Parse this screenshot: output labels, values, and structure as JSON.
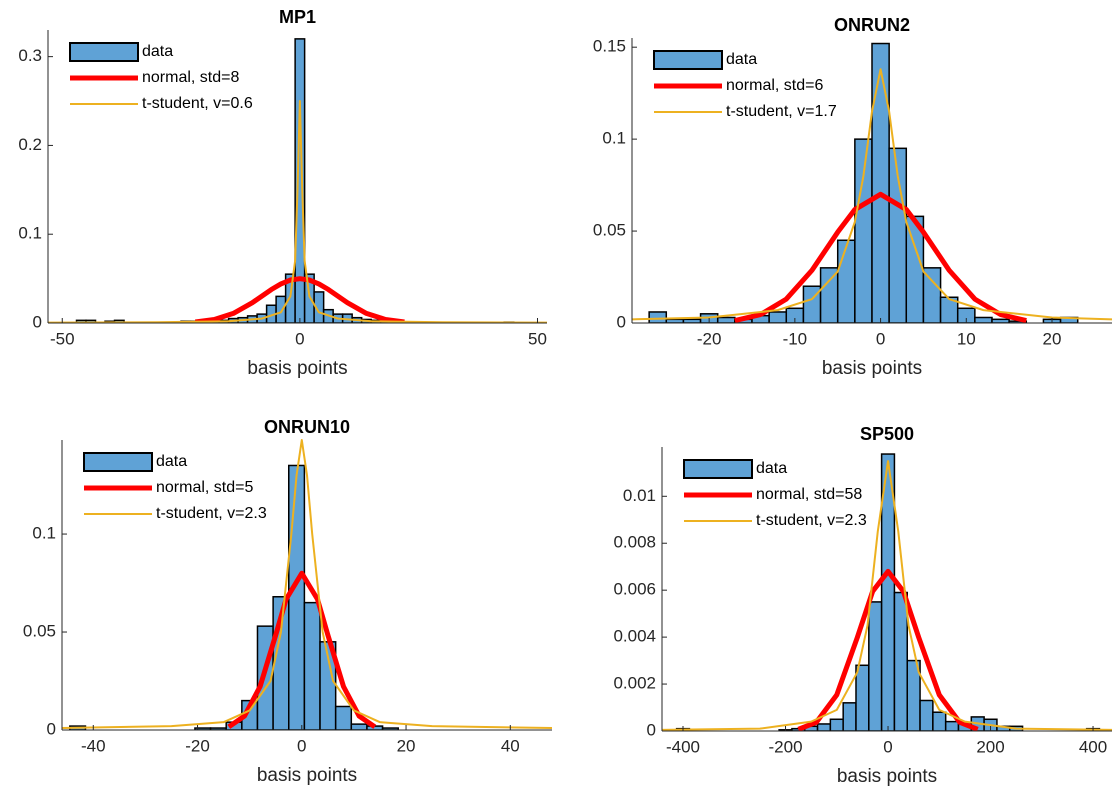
{
  "chart_data": [
    {
      "type": "histogram",
      "title": "MP1",
      "xlabel": "basis points",
      "xlim": [
        -53,
        52
      ],
      "ylim": [
        0,
        0.33
      ],
      "xticks": [
        -50,
        0,
        50
      ],
      "yticks": [
        0,
        0.1,
        0.2,
        0.3
      ],
      "legend": "upper left",
      "series": [
        {
          "name": "data",
          "type": "histogram",
          "color": "#5fa2d6",
          "bins": [
            -47,
            -45,
            -43,
            -41,
            -39,
            -37,
            -35,
            -33,
            -31,
            -29,
            -27,
            -25,
            -23,
            -21,
            -19,
            -17,
            -15,
            -13,
            -11,
            -9,
            -7,
            -5,
            -3,
            -1,
            1,
            3,
            5,
            7,
            9,
            11,
            13,
            15,
            17,
            19,
            21,
            23,
            25,
            27,
            29,
            31,
            33,
            35,
            37,
            39,
            41,
            43,
            45,
            47
          ],
          "values": [
            0.003,
            0.003,
            0,
            0.002,
            0.003,
            0,
            0,
            0,
            0,
            0,
            0,
            0.002,
            0.002,
            0.002,
            0.003,
            0.003,
            0.005,
            0.006,
            0.008,
            0.01,
            0.02,
            0.03,
            0.055,
            0.32,
            0.055,
            0.035,
            0.015,
            0.01,
            0.01,
            0.006,
            0.004,
            0.003,
            0.002,
            0,
            0,
            0,
            0,
            0,
            0,
            0,
            0,
            0,
            0,
            0,
            0,
            0.001,
            0
          ]
        },
        {
          "name": "normal, std=8",
          "type": "line",
          "color": "#ff0000",
          "width": 5,
          "x": [
            -22,
            -18,
            -14,
            -10,
            -6,
            -4,
            -2,
            0,
            2,
            4,
            6,
            10,
            14,
            18,
            22
          ],
          "values": [
            0.0011,
            0.004,
            0.0108,
            0.0229,
            0.0377,
            0.044,
            0.0484,
            0.0499,
            0.0484,
            0.044,
            0.0377,
            0.0229,
            0.0108,
            0.004,
            0.0011
          ]
        },
        {
          "name": "t-student, v=0.6",
          "type": "line",
          "color": "#edb120",
          "width": 2,
          "x": [
            -53,
            -30,
            -15,
            -8,
            -4,
            -2,
            -1,
            -0.5,
            0,
            0.5,
            1,
            2,
            4,
            8,
            15,
            30,
            52
          ],
          "values": [
            0.0004,
            0.0008,
            0.002,
            0.005,
            0.012,
            0.03,
            0.07,
            0.15,
            0.25,
            0.15,
            0.07,
            0.03,
            0.012,
            0.005,
            0.002,
            0.0008,
            0.0004
          ]
        }
      ]
    },
    {
      "type": "histogram",
      "title": "ONRUN2",
      "xlabel": "basis points",
      "xlim": [
        -29,
        27
      ],
      "ylim": [
        0,
        0.155
      ],
      "xticks": [
        -20,
        -10,
        0,
        10,
        20
      ],
      "yticks": [
        0,
        0.05,
        0.1,
        0.15
      ],
      "legend": "upper left",
      "series": [
        {
          "name": "data",
          "type": "histogram",
          "color": "#5fa2d6",
          "bins": [
            -27,
            -25,
            -23,
            -21,
            -19,
            -17,
            -15,
            -13,
            -11,
            -9,
            -7,
            -5,
            -3,
            -1,
            1,
            3,
            5,
            7,
            9,
            11,
            13,
            15,
            17,
            19,
            21,
            23,
            25
          ],
          "values": [
            0.006,
            0.002,
            0.002,
            0.005,
            0.003,
            0.002,
            0.004,
            0.006,
            0.008,
            0.02,
            0.03,
            0.045,
            0.1,
            0.152,
            0.095,
            0.058,
            0.03,
            0.014,
            0.008,
            0.003,
            0.002,
            0.001,
            0,
            0.002,
            0.003,
            0
          ]
        },
        {
          "name": "normal, std=6",
          "type": "line",
          "color": "#ff0000",
          "width": 5,
          "x": [
            -17,
            -14,
            -11,
            -8,
            -5,
            -3,
            0,
            3,
            5,
            8,
            11,
            14,
            17
          ],
          "values": [
            0.0013,
            0.0046,
            0.013,
            0.0287,
            0.0494,
            0.0617,
            0.07,
            0.0617,
            0.0494,
            0.0287,
            0.013,
            0.0046,
            0.0013
          ]
        },
        {
          "name": "t-student, v=1.7",
          "type": "line",
          "color": "#edb120",
          "width": 2,
          "x": [
            -29,
            -20,
            -12,
            -8,
            -5,
            -3,
            -2,
            -1,
            0,
            1,
            2,
            3,
            5,
            8,
            12,
            20,
            27
          ],
          "values": [
            0.002,
            0.003,
            0.007,
            0.013,
            0.028,
            0.055,
            0.08,
            0.115,
            0.138,
            0.115,
            0.08,
            0.055,
            0.028,
            0.013,
            0.007,
            0.003,
            0.002
          ]
        }
      ]
    },
    {
      "type": "histogram",
      "title": "ONRUN10",
      "xlabel": "basis points",
      "xlim": [
        -46,
        48
      ],
      "ylim": [
        0,
        0.148
      ],
      "xticks": [
        -40,
        -20,
        0,
        20,
        40
      ],
      "yticks": [
        0,
        0.05,
        0.1
      ],
      "legend": "upper left",
      "series": [
        {
          "name": "data",
          "type": "histogram",
          "color": "#5fa2d6",
          "bins": [
            -44.5,
            -41.5,
            -38.5,
            -35.5,
            -32.5,
            -29.5,
            -26.5,
            -23.5,
            -20.5,
            -17.5,
            -14.5,
            -11.5,
            -8.5,
            -5.5,
            -2.5,
            0.5,
            3.5,
            6.5,
            9.5,
            12.5,
            15.5,
            18.5,
            21.5,
            24.5,
            27.5,
            30.5,
            33.5,
            36.5,
            39.5,
            42.5,
            45.5
          ],
          "values": [
            0.002,
            0,
            0,
            0,
            0,
            0,
            0,
            0,
            0.001,
            0.001,
            0.004,
            0.015,
            0.053,
            0.068,
            0.135,
            0.065,
            0.045,
            0.012,
            0.003,
            0.002,
            0.001,
            0,
            0,
            0,
            0,
            0,
            0,
            0,
            0,
            0
          ]
        },
        {
          "name": "normal, std=5",
          "type": "line",
          "color": "#ff0000",
          "width": 5,
          "x": [
            -14,
            -11,
            -8,
            -5,
            -3,
            0,
            3,
            5,
            8,
            11,
            14
          ],
          "values": [
            0.0016,
            0.0071,
            0.0222,
            0.0485,
            0.0668,
            0.08,
            0.0668,
            0.0485,
            0.0222,
            0.0071,
            0.0016
          ]
        },
        {
          "name": "t-student, v=2.3",
          "type": "line",
          "color": "#edb120",
          "width": 2,
          "x": [
            -46,
            -25,
            -15,
            -10,
            -6,
            -4,
            -2,
            -1,
            0,
            1,
            2,
            4,
            6,
            10,
            15,
            25,
            48
          ],
          "values": [
            0.001,
            0.002,
            0.004,
            0.01,
            0.025,
            0.05,
            0.1,
            0.13,
            0.148,
            0.13,
            0.1,
            0.05,
            0.025,
            0.01,
            0.004,
            0.002,
            0.001
          ]
        }
      ]
    },
    {
      "type": "histogram",
      "title": "SP500",
      "xlabel": "basis points",
      "xlim": [
        -441,
        437
      ],
      "ylim": [
        0,
        0.0121
      ],
      "xticks": [
        -400,
        -200,
        0,
        200,
        400
      ],
      "yticks": [
        0,
        0.002,
        0.004,
        0.006,
        0.008,
        0.01
      ],
      "legend": "upper left",
      "series": [
        {
          "name": "data",
          "type": "histogram",
          "color": "#5fa2d6",
          "bins": [
            -412.5,
            -387.5,
            -362.5,
            -337.5,
            -312.5,
            -287.5,
            -262.5,
            -237.5,
            -212.5,
            -187.5,
            -162.5,
            -137.5,
            -112.5,
            -87.5,
            -62.5,
            -37.5,
            -12.5,
            12.5,
            37.5,
            62.5,
            87.5,
            112.5,
            137.5,
            162.5,
            187.5,
            212.5,
            237.5,
            262.5,
            287.5,
            312.5,
            337.5,
            362.5,
            387.5,
            412.5
          ],
          "values": [
            0.0001,
            0,
            0,
            0,
            0,
            0,
            0,
            0,
            5e-05,
            0.0001,
            0.0002,
            0.0003,
            0.0005,
            0.0012,
            0.0028,
            0.0055,
            0.0118,
            0.0059,
            0.003,
            0.0013,
            0.0008,
            0.0004,
            0.0003,
            0.0006,
            0.0005,
            0.0002,
            0.0002,
            0,
            0,
            0,
            0,
            0,
            0.0001
          ]
        },
        {
          "name": "normal, std=58",
          "type": "line",
          "color": "#ff0000",
          "width": 5,
          "x": [
            -175,
            -140,
            -100,
            -60,
            -30,
            0,
            30,
            60,
            100,
            140,
            175
          ],
          "values": [
            7e-05,
            0.00037,
            0.00154,
            0.00398,
            0.00595,
            0.0068,
            0.00595,
            0.00398,
            0.00154,
            0.00037,
            7e-05
          ]
        },
        {
          "name": "t-student, v=2.3",
          "type": "line",
          "color": "#edb120",
          "width": 2,
          "x": [
            -441,
            -250,
            -150,
            -100,
            -60,
            -40,
            -20,
            0,
            20,
            40,
            60,
            100,
            150,
            250,
            437
          ],
          "values": [
            5e-05,
            0.0001,
            0.0004,
            0.0009,
            0.0025,
            0.0045,
            0.0085,
            0.0115,
            0.0085,
            0.0045,
            0.0025,
            0.0009,
            0.0004,
            0.0001,
            5e-05
          ]
        }
      ]
    }
  ]
}
